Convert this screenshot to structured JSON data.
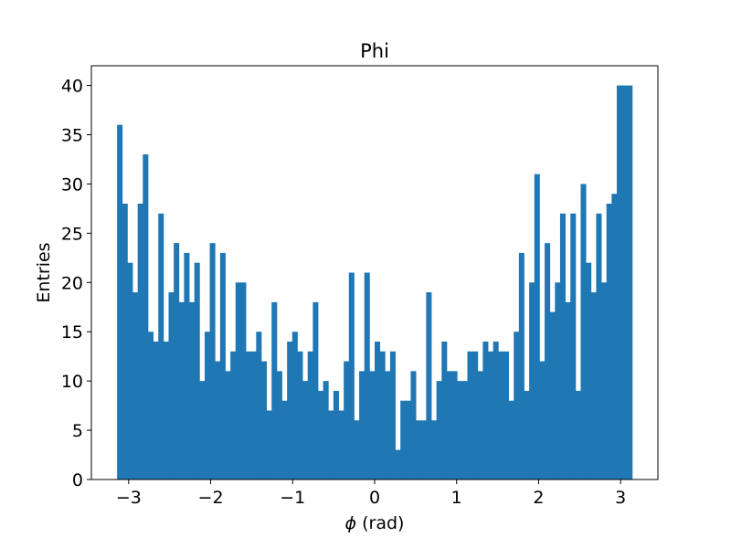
{
  "chart_data": {
    "type": "bar",
    "title": "Phi",
    "xlabel_symbol": "ϕ",
    "xlabel_unit": " (rad)",
    "ylabel": "Entries",
    "xlim": [
      -3.455,
      3.455
    ],
    "ylim": [
      0,
      42
    ],
    "x_ticks": [
      -3,
      -2,
      -1,
      0,
      1,
      2,
      3
    ],
    "x_tick_labels": [
      "−3",
      "−2",
      "−1",
      "0",
      "1",
      "2",
      "3"
    ],
    "y_ticks": [
      0,
      5,
      10,
      15,
      20,
      25,
      30,
      35,
      40
    ],
    "y_tick_labels": [
      "0",
      "5",
      "10",
      "15",
      "20",
      "25",
      "30",
      "35",
      "40"
    ],
    "bins": {
      "range": [
        -3.14159,
        3.14159
      ],
      "count": 100
    },
    "values": [
      36,
      28,
      22,
      19,
      28,
      33,
      15,
      14,
      27,
      14,
      19,
      24,
      18,
      23,
      18,
      22,
      10,
      15,
      24,
      12,
      23,
      11,
      13,
      20,
      20,
      13,
      13,
      15,
      12,
      7,
      18,
      11,
      8,
      14,
      15,
      13,
      10,
      13,
      18,
      9,
      10,
      7,
      9,
      7,
      12,
      21,
      6,
      11,
      21,
      11,
      14,
      13,
      11,
      13,
      3,
      8,
      8,
      11,
      6,
      6,
      19,
      6,
      10,
      14,
      11,
      11,
      10,
      10,
      13,
      13,
      11,
      14,
      13,
      14,
      13,
      13,
      8,
      15,
      23,
      9,
      20,
      31,
      12,
      24,
      17,
      20,
      27,
      18,
      27,
      9,
      30,
      22,
      19,
      27,
      20,
      28,
      29,
      40,
      40,
      40
    ],
    "bar_color": "#1f77b4",
    "grid": false,
    "legend": "none"
  }
}
